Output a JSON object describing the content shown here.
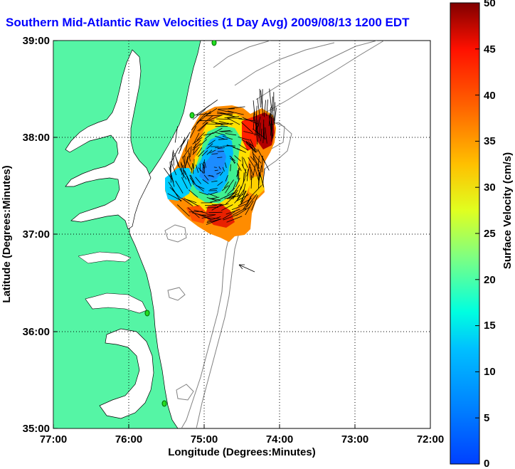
{
  "title": "Southern Mid-Atlantic Raw Velocities (1 Day Avg) 2009/08/13 1200 EDT",
  "map": {
    "xlabel": "Longitude (Degrees:Minutes)",
    "ylabel": "Latitude (Degrees:Minutes)",
    "x_ticks": [
      "77:00",
      "76:00",
      "75:00",
      "74:00",
      "73:00",
      "72:00"
    ],
    "y_ticks": [
      "39:00",
      "38:00",
      "37:00",
      "36:00",
      "35:00"
    ],
    "lon_range": [
      -77,
      -72
    ],
    "lat_range": [
      35,
      39
    ],
    "land_color": "#55f5a5",
    "water_color": "#ffffff",
    "grid": "dotted"
  },
  "colorbar": {
    "label": "Surface Velocity (cm/s)",
    "ticks": [
      "50",
      "45",
      "40",
      "35",
      "30",
      "25",
      "20",
      "15",
      "10",
      "5",
      "0"
    ],
    "range": [
      0,
      50
    ],
    "colormap": "jet"
  }
}
